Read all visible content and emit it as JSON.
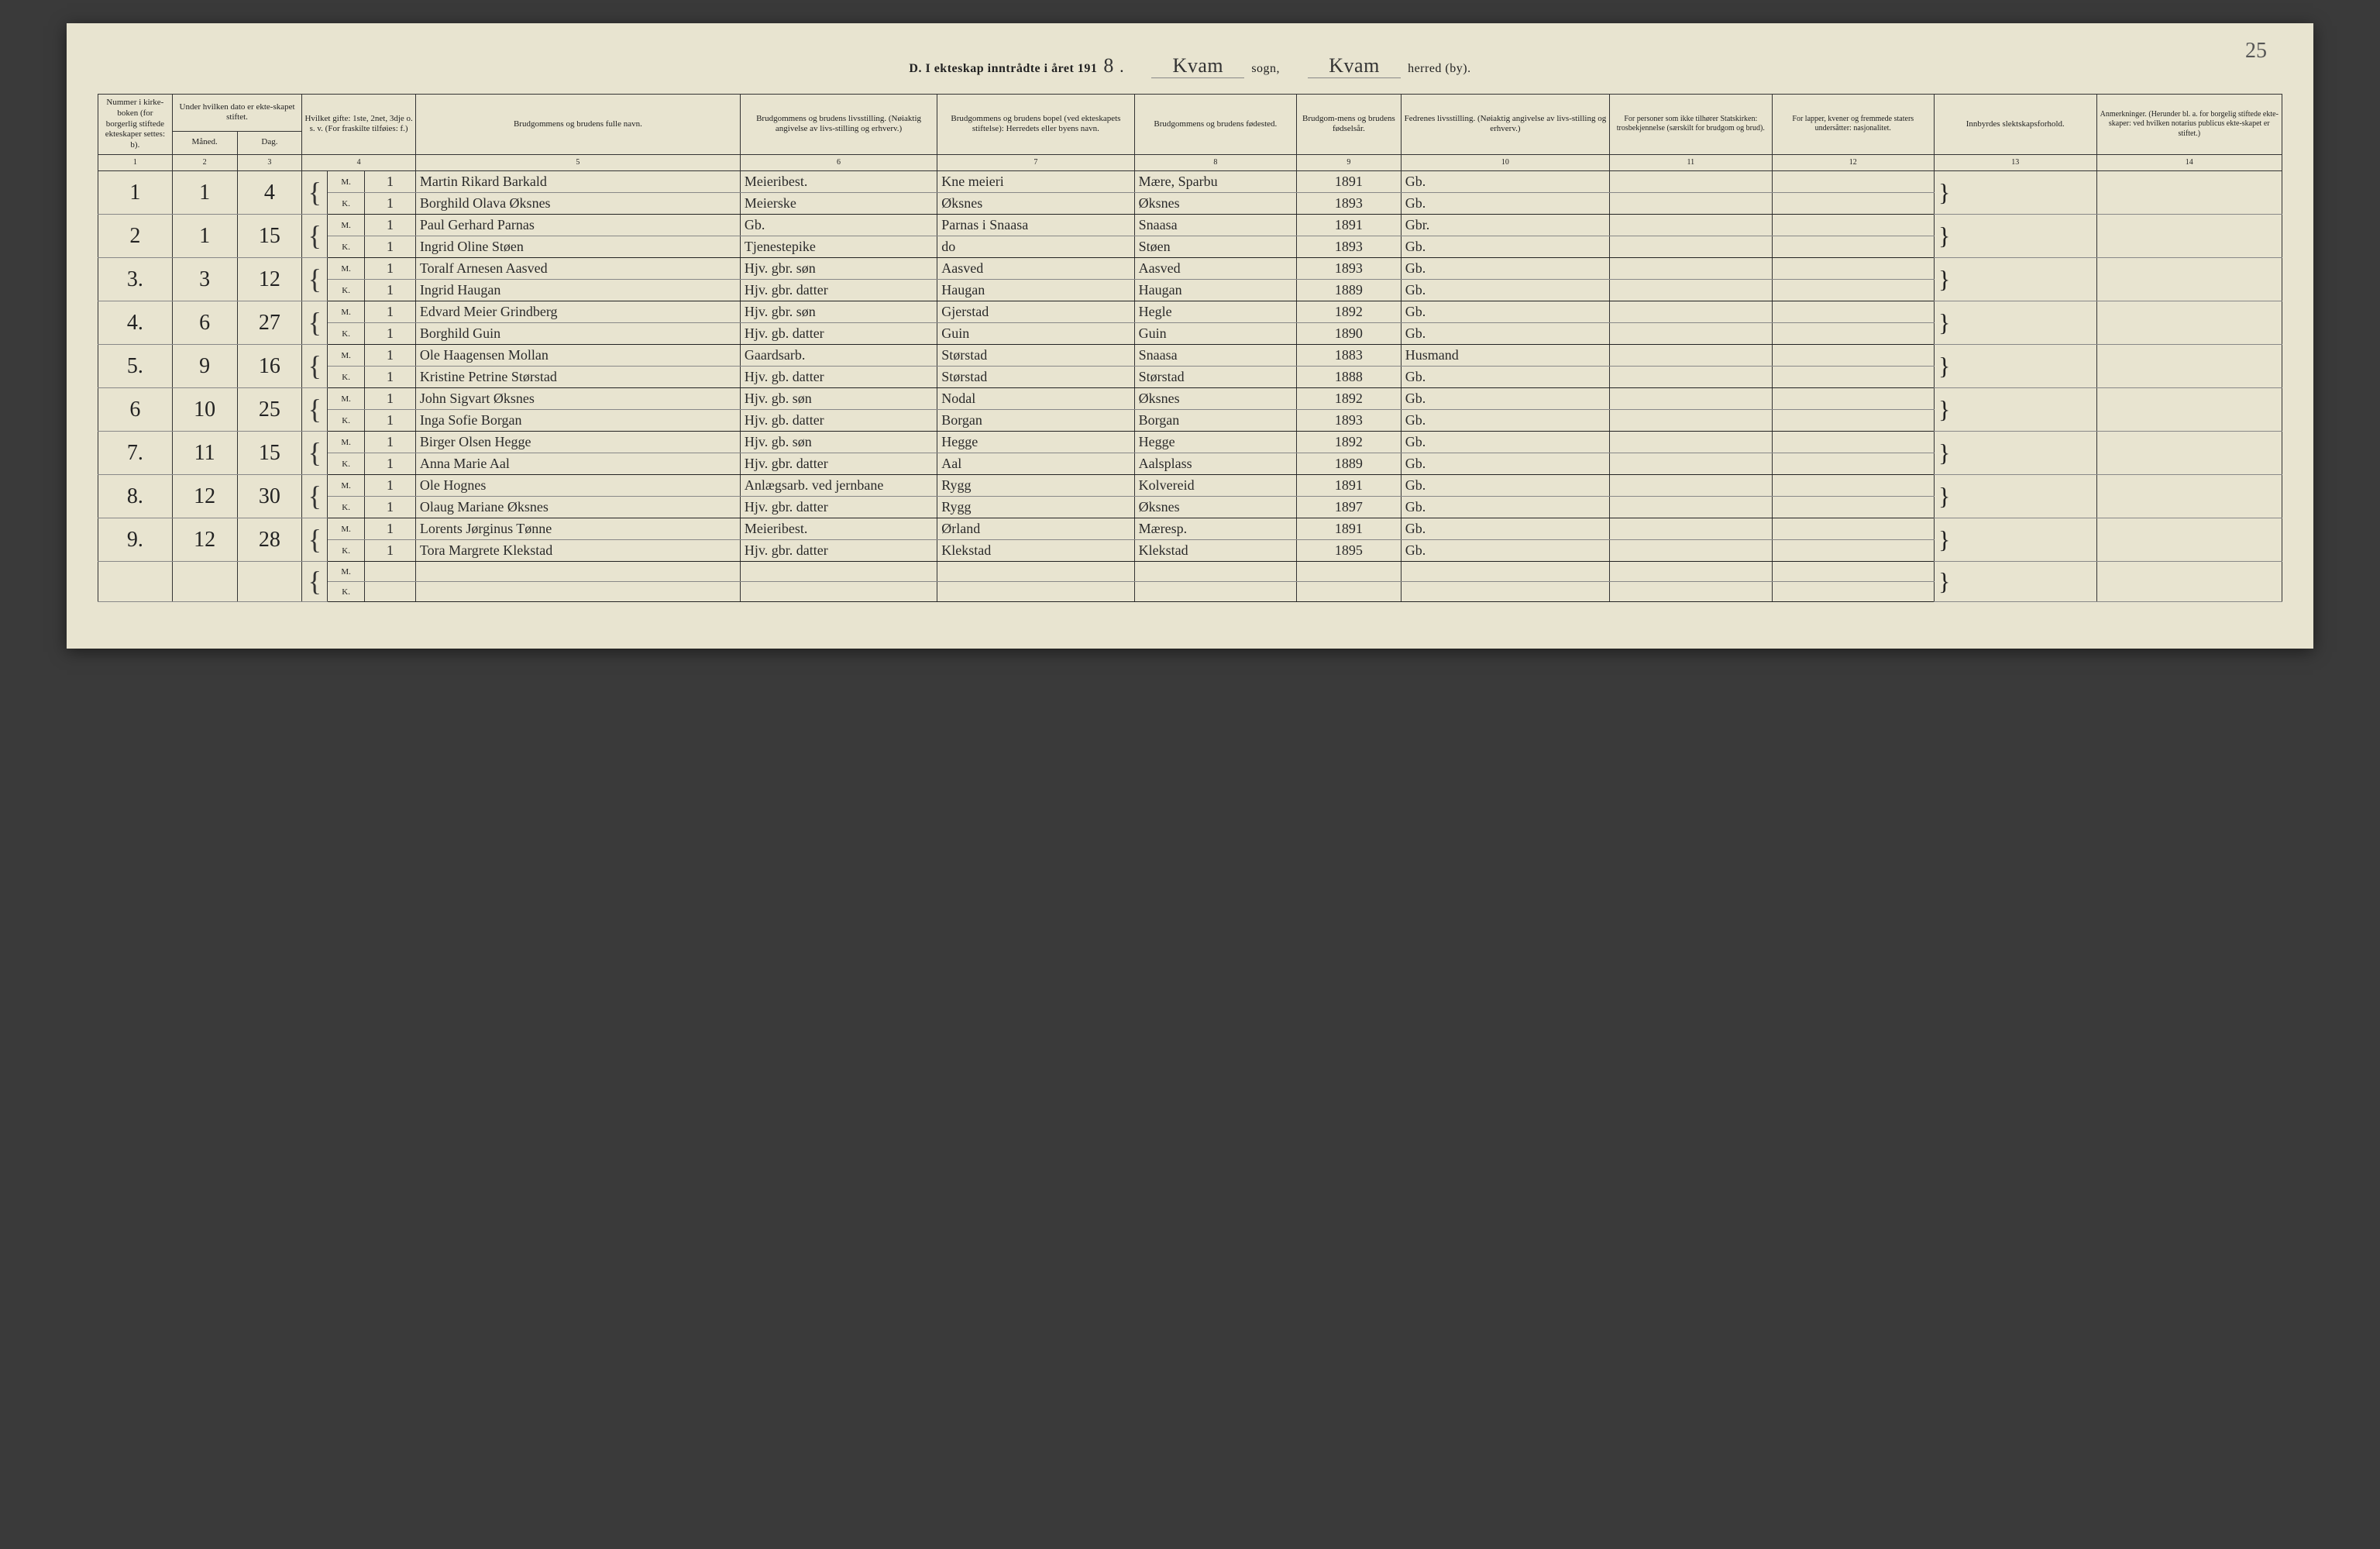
{
  "page_number_corner": "25",
  "header": {
    "prefix": "D.  I ekteskap inntrådte i året 191",
    "year_suffix": "8",
    "sogn_value": "Kvam",
    "sogn_label": "sogn,",
    "herred_value": "Kvam",
    "herred_label": "herred (by)."
  },
  "columns": {
    "c1": "Nummer i kirke-boken (for borgerlig stiftede ekteskaper settes: b).",
    "c2_3_top": "Under hvilken dato er ekte-skapet stiftet.",
    "c2": "Måned.",
    "c3": "Dag.",
    "c4": "Hvilket gifte: 1ste, 2net, 3dje o. s. v. (For fraskilte tilføies: f.)",
    "c5": "Brudgommens og brudens fulle navn.",
    "c6": "Brudgommens og brudens livsstilling. (Nøiaktig angivelse av livs-stilling og erhverv.)",
    "c7": "Brudgommens og brudens bopel (ved ekteskapets stiftelse): Herredets eller byens navn.",
    "c8": "Brudgommens og brudens fødested.",
    "c9": "Brudgom-mens og brudens fødselsår.",
    "c10": "Fedrenes livsstilling. (Nøiaktig angivelse av livs-stilling og erhverv.)",
    "c11": "For personer som ikke tilhører Statskirken: trosbekjennelse (særskilt for brudgom og brud).",
    "c12": "For lapper, kvener og fremmede staters undersåtter: nasjonalitet.",
    "c13": "Innbyrdes slektskapsforhold.",
    "c14": "Anmerkninger. (Herunder bl. a. for borgelig stiftede ekte-skaper: ved hvilken notarius publicus ekte-skapet er stiftet.)"
  },
  "colnums": [
    "1",
    "2",
    "3",
    "4",
    "5",
    "6",
    "7",
    "8",
    "9",
    "10",
    "11",
    "12",
    "13",
    "14"
  ],
  "mk": {
    "m": "M.",
    "k": "K."
  },
  "entries": [
    {
      "num": "1",
      "month": "1",
      "day": "4",
      "m": {
        "gifte": "1",
        "name": "Martin Rikard Barkald",
        "stilling": "Meieribest.",
        "bopel": "Kne meieri",
        "fodested": "Mære, Sparbu",
        "aar": "1891",
        "fedre": "Gb."
      },
      "k": {
        "gifte": "1",
        "name": "Borghild Olava Øksnes",
        "stilling": "Meierske",
        "bopel": "Øksnes",
        "fodested": "Øksnes",
        "aar": "1893",
        "fedre": "Gb."
      }
    },
    {
      "num": "2",
      "month": "1",
      "day": "15",
      "m": {
        "gifte": "1",
        "name": "Paul Gerhard Parnas",
        "stilling": "Gb.",
        "bopel": "Parnas i Snaasa",
        "fodested": "Snaasa",
        "aar": "1891",
        "fedre": "Gbr."
      },
      "k": {
        "gifte": "1",
        "name": "Ingrid Oline Støen",
        "stilling": "Tjenestepike",
        "bopel": "do",
        "fodested": "Støen",
        "aar": "1893",
        "fedre": "Gb."
      }
    },
    {
      "num": "3.",
      "month": "3",
      "day": "12",
      "m": {
        "gifte": "1",
        "name": "Toralf Arnesen Aasved",
        "stilling": "Hjv. gbr. søn",
        "bopel": "Aasved",
        "fodested": "Aasved",
        "aar": "1893",
        "fedre": "Gb."
      },
      "k": {
        "gifte": "1",
        "name": "Ingrid Haugan",
        "stilling": "Hjv. gbr. datter",
        "bopel": "Haugan",
        "fodested": "Haugan",
        "aar": "1889",
        "fedre": "Gb."
      }
    },
    {
      "num": "4.",
      "month": "6",
      "day": "27",
      "m": {
        "gifte": "1",
        "name": "Edvard Meier Grindberg",
        "stilling": "Hjv. gbr. søn",
        "bopel": "Gjerstad",
        "fodested": "Hegle",
        "aar": "1892",
        "fedre": "Gb."
      },
      "k": {
        "gifte": "1",
        "name": "Borghild Guin",
        "stilling": "Hjv. gb. datter",
        "bopel": "Guin",
        "fodested": "Guin",
        "aar": "1890",
        "fedre": "Gb."
      }
    },
    {
      "num": "5.",
      "month": "9",
      "day": "16",
      "m": {
        "gifte": "1",
        "name": "Ole Haagensen Mollan",
        "stilling": "Gaardsarb.",
        "bopel": "Størstad",
        "fodested": "Snaasa",
        "aar": "1883",
        "fedre": "Husmand"
      },
      "k": {
        "gifte": "1",
        "name": "Kristine Petrine Størstad",
        "stilling": "Hjv. gb. datter",
        "bopel": "Størstad",
        "fodested": "Størstad",
        "aar": "1888",
        "fedre": "Gb."
      }
    },
    {
      "num": "6",
      "month": "10",
      "day": "25",
      "m": {
        "gifte": "1",
        "name": "John Sigvart Øksnes",
        "stilling": "Hjv. gb. søn",
        "bopel": "Nodal",
        "fodested": "Øksnes",
        "aar": "1892",
        "fedre": "Gb."
      },
      "k": {
        "gifte": "1",
        "name": "Inga Sofie Borgan",
        "stilling": "Hjv. gb. datter",
        "bopel": "Borgan",
        "fodested": "Borgan",
        "aar": "1893",
        "fedre": "Gb."
      }
    },
    {
      "num": "7.",
      "month": "11",
      "day": "15",
      "m": {
        "gifte": "1",
        "name": "Birger Olsen Hegge",
        "stilling": "Hjv. gb. søn",
        "bopel": "Hegge",
        "fodested": "Hegge",
        "aar": "1892",
        "fedre": "Gb."
      },
      "k": {
        "gifte": "1",
        "name": "Anna Marie Aal",
        "stilling": "Hjv. gbr. datter",
        "bopel": "Aal",
        "fodested": "Aalsplass",
        "aar": "1889",
        "fedre": "Gb."
      }
    },
    {
      "num": "8.",
      "month": "12",
      "day": "30",
      "m": {
        "gifte": "1",
        "name": "Ole Hognes",
        "stilling": "Anlægsarb. ved jernbane",
        "bopel": "Rygg",
        "fodested": "Kolvereid",
        "aar": "1891",
        "fedre": "Gb."
      },
      "k": {
        "gifte": "1",
        "name": "Olaug Mariane Øksnes",
        "stilling": "Hjv. gbr. datter",
        "bopel": "Rygg",
        "fodested": "Øksnes",
        "aar": "1897",
        "fedre": "Gb."
      }
    },
    {
      "num": "9.",
      "month": "12",
      "day": "28",
      "m": {
        "gifte": "1",
        "name": "Lorents Jørginus Tønne",
        "stilling": "Meieribest.",
        "bopel": "Ørland",
        "fodested": "Mæresp.",
        "aar": "1891",
        "fedre": "Gb."
      },
      "k": {
        "gifte": "1",
        "name": "Tora Margrete Klekstad",
        "stilling": "Hjv. gbr. datter",
        "bopel": "Klekstad",
        "fodested": "Klekstad",
        "aar": "1895",
        "fedre": "Gb."
      }
    }
  ]
}
